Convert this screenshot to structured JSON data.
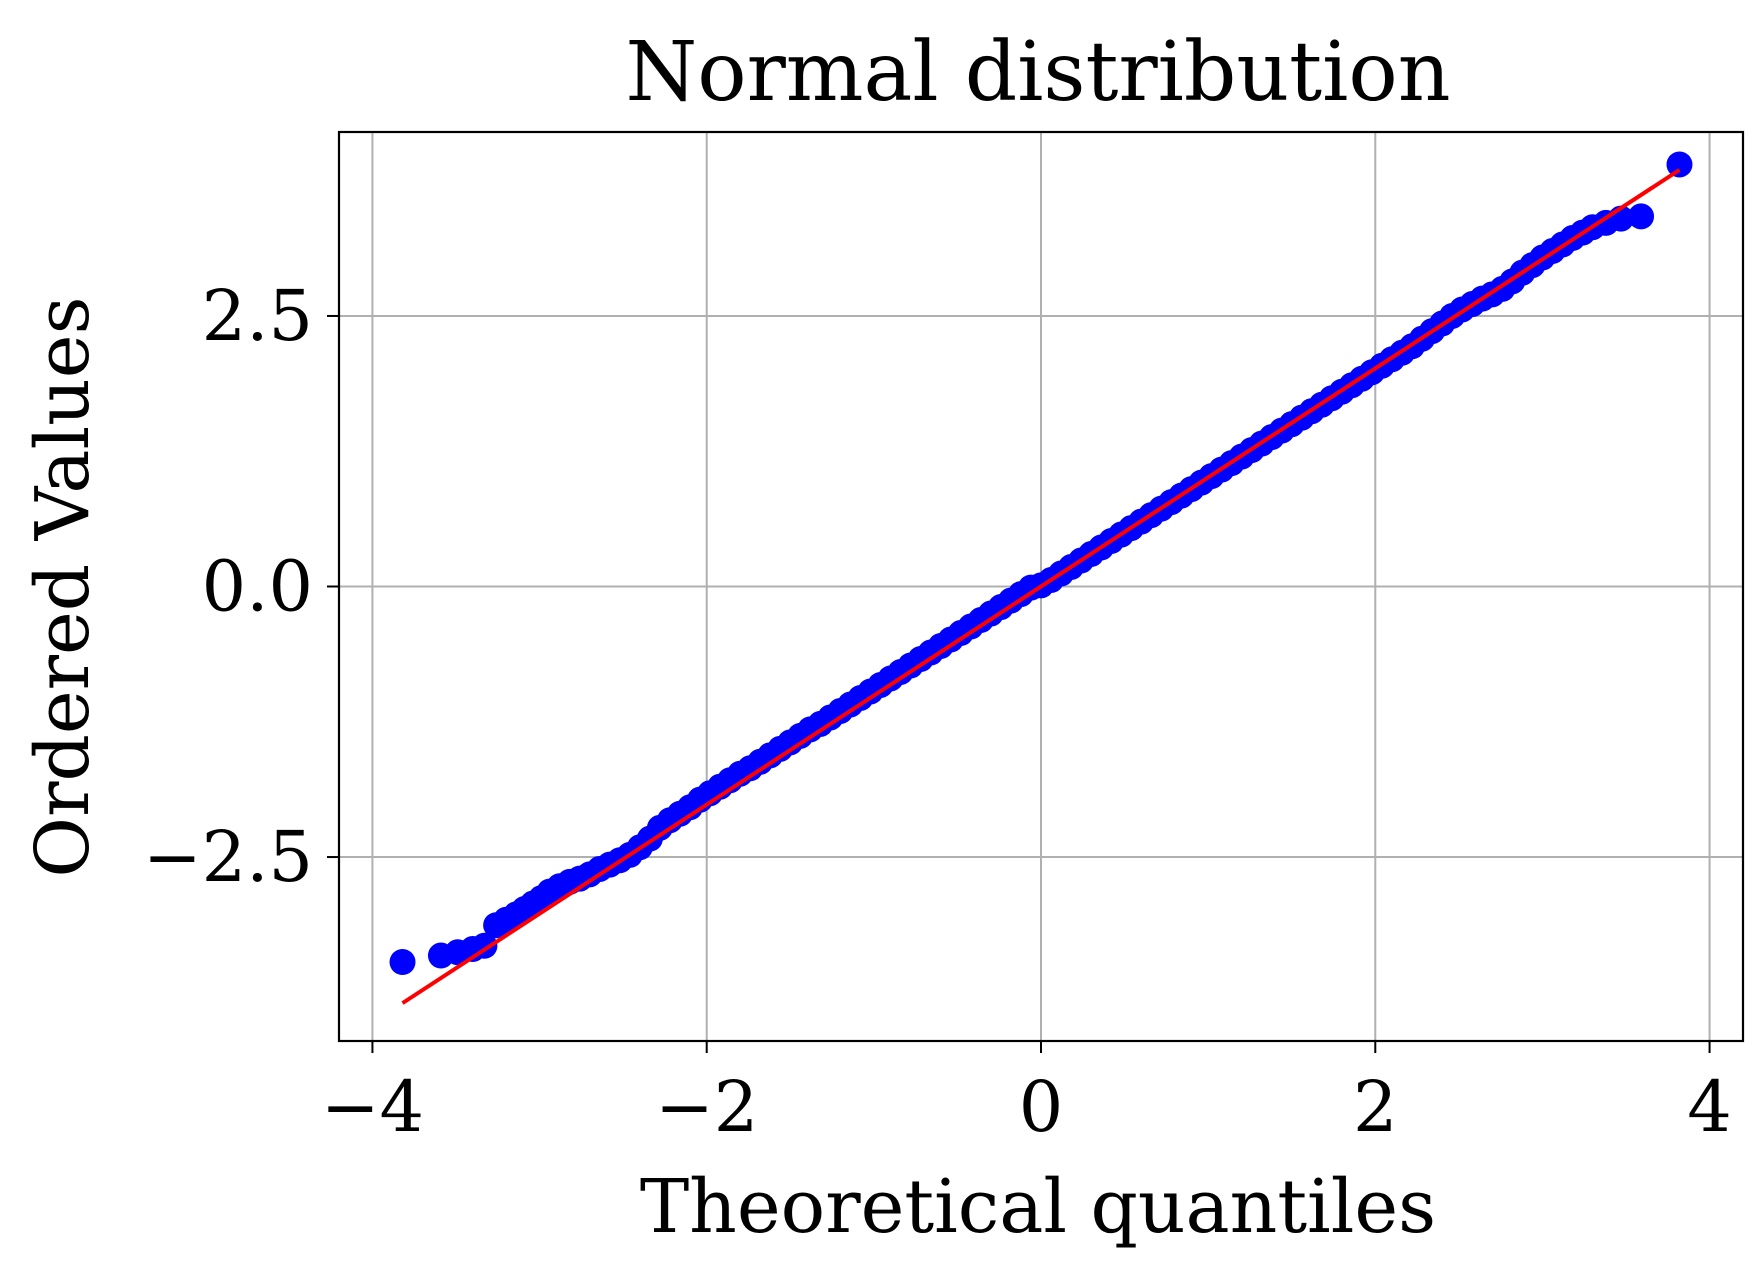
{
  "chart_data": {
    "type": "scatter",
    "title": "Normal distribution",
    "xlabel": "Theoretical quantiles",
    "ylabel": "Ordered Values",
    "xlim": [
      -4.2,
      4.2
    ],
    "ylim": [
      -4.2,
      4.2
    ],
    "grid": true,
    "x_ticks": [
      {
        "value": -4,
        "label": "−4"
      },
      {
        "value": -2,
        "label": "−2"
      },
      {
        "value": 0,
        "label": "0"
      },
      {
        "value": 2,
        "label": "2"
      },
      {
        "value": 4,
        "label": "4"
      }
    ],
    "y_ticks": [
      {
        "value": -2.5,
        "label": "−2.5"
      },
      {
        "value": 0,
        "label": "0.0"
      },
      {
        "value": 2.5,
        "label": "2.5"
      }
    ],
    "points": {
      "color": "#0000ff",
      "x": [
        -3.82,
        -3.59,
        -3.49,
        -3.4,
        -3.33,
        -3.26,
        -3.2,
        -3.14,
        -3.09,
        -3.04,
        -2.99,
        -2.94,
        -2.88,
        -2.82,
        -2.76,
        -2.7,
        -2.64,
        -2.58,
        -2.52,
        -2.46,
        -2.4,
        -2.34,
        -2.28,
        -2.22,
        -2.16,
        -2.1,
        -2.04,
        -1.98,
        -1.92,
        -1.86,
        -1.8,
        -1.74,
        -1.68,
        -1.62,
        -1.56,
        -1.5,
        -1.44,
        -1.38,
        -1.32,
        -1.26,
        -1.2,
        -1.14,
        -1.08,
        -1.02,
        -0.96,
        -0.9,
        -0.84,
        -0.78,
        -0.72,
        -0.66,
        -0.6,
        -0.54,
        -0.48,
        -0.42,
        -0.36,
        -0.3,
        -0.24,
        -0.18,
        -0.12,
        -0.06,
        0.0,
        0.06,
        0.12,
        0.18,
        0.24,
        0.3,
        0.36,
        0.42,
        0.48,
        0.54,
        0.6,
        0.66,
        0.72,
        0.78,
        0.84,
        0.9,
        0.96,
        1.02,
        1.08,
        1.14,
        1.2,
        1.26,
        1.32,
        1.38,
        1.44,
        1.5,
        1.56,
        1.62,
        1.68,
        1.74,
        1.8,
        1.86,
        1.92,
        1.98,
        2.04,
        2.1,
        2.16,
        2.22,
        2.28,
        2.34,
        2.4,
        2.46,
        2.52,
        2.58,
        2.64,
        2.7,
        2.76,
        2.82,
        2.88,
        2.94,
        3.0,
        3.06,
        3.12,
        3.18,
        3.24,
        3.3,
        3.38,
        3.47,
        3.59,
        3.82
      ],
      "y": [
        -3.47,
        -3.41,
        -3.38,
        -3.35,
        -3.32,
        -3.13,
        -3.08,
        -3.03,
        -2.98,
        -2.93,
        -2.88,
        -2.82,
        -2.77,
        -2.73,
        -2.7,
        -2.66,
        -2.61,
        -2.57,
        -2.53,
        -2.48,
        -2.41,
        -2.33,
        -2.23,
        -2.16,
        -2.1,
        -2.04,
        -1.97,
        -1.91,
        -1.85,
        -1.79,
        -1.73,
        -1.68,
        -1.62,
        -1.56,
        -1.5,
        -1.44,
        -1.38,
        -1.32,
        -1.27,
        -1.21,
        -1.15,
        -1.09,
        -1.03,
        -0.97,
        -0.91,
        -0.85,
        -0.79,
        -0.73,
        -0.67,
        -0.61,
        -0.55,
        -0.49,
        -0.43,
        -0.37,
        -0.31,
        -0.25,
        -0.19,
        -0.13,
        -0.07,
        -0.01,
        0.01,
        0.06,
        0.12,
        0.18,
        0.24,
        0.3,
        0.36,
        0.42,
        0.48,
        0.54,
        0.6,
        0.66,
        0.72,
        0.78,
        0.84,
        0.9,
        0.96,
        1.02,
        1.08,
        1.14,
        1.2,
        1.26,
        1.32,
        1.38,
        1.44,
        1.5,
        1.56,
        1.62,
        1.68,
        1.74,
        1.8,
        1.86,
        1.92,
        1.98,
        2.04,
        2.1,
        2.16,
        2.22,
        2.29,
        2.36,
        2.43,
        2.5,
        2.56,
        2.61,
        2.66,
        2.7,
        2.75,
        2.82,
        2.9,
        2.97,
        3.04,
        3.1,
        3.16,
        3.22,
        3.27,
        3.32,
        3.36,
        3.4,
        3.42,
        3.9
      ]
    },
    "fit_line": {
      "color": "#ff0000",
      "x": [
        -3.82,
        3.82
      ],
      "y": [
        -3.85,
        3.85
      ]
    }
  }
}
